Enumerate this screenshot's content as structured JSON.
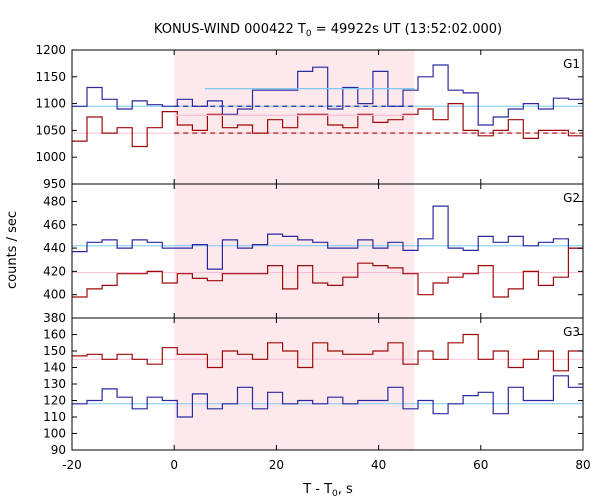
{
  "chart_data": {
    "type": "line",
    "title": "KONUS-WIND 000422 T",
    "title_sub": "0",
    "title_rest": " = 49922s UT (13:52:02.000)",
    "xlabel": "T - T",
    "xlabel_sub": "0",
    "xlabel_rest": ", s",
    "ylabel": "counts / sec",
    "xlim": [
      -20,
      80
    ],
    "x_ticks": [
      -20,
      0,
      20,
      40,
      60,
      80
    ],
    "shaded_interval": [
      0,
      47
    ],
    "colors": {
      "blue": "#2a2aa0",
      "red": "#9e0a0a",
      "cyan": "#7fc8f0",
      "pink": "#f8c0d8",
      "shade": "#fde8ec"
    },
    "bin_width": 2.944,
    "x_start": -20,
    "panels": [
      {
        "label": "G1",
        "ylim": [
          950,
          1200
        ],
        "y_ticks": [
          950,
          1000,
          1050,
          1100,
          1150,
          1200
        ],
        "series": [
          {
            "color": "blue",
            "values": [
              1095,
              1130,
              1108,
              1090,
              1105,
              1098,
              1095,
              1108,
              1095,
              1105,
              1080,
              1090,
              1125,
              1125,
              1125,
              1160,
              1168,
              1090,
              1130,
              1100,
              1160,
              1095,
              1125,
              1150,
              1172,
              1125,
              1120,
              1060,
              1075,
              1090,
              1100,
              1090,
              1110,
              1108,
              1080,
              1115,
              1075,
              1115,
              1095,
              1085,
              1060,
              1115,
              1090,
              1080,
              1055,
              1130,
              1120,
              1075,
              1060,
              1060,
              1085,
              1100,
              1128,
              1070,
              1120
            ]
          },
          {
            "color": "red",
            "values": [
              1030,
              1075,
              1045,
              1055,
              1020,
              1055,
              1085,
              1060,
              1050,
              1080,
              1055,
              1060,
              1045,
              1070,
              1055,
              1080,
              1080,
              1060,
              1055,
              1080,
              1065,
              1070,
              1080,
              1090,
              1070,
              1100,
              1050,
              1040,
              1050,
              1070,
              1035,
              1050,
              1050,
              1040,
              1020,
              1055,
              1030,
              1060,
              1040,
              1035,
              1025,
              1050,
              1035,
              1060,
              1035,
              1050,
              1020,
              1050,
              1000,
              1030,
              1050,
              1055,
              1040,
              1015,
              1060
            ]
          }
        ],
        "fits": [
          {
            "color": "cyan",
            "y": 1095
          },
          {
            "color": "pink",
            "y": 1045
          }
        ],
        "interval_levels": [
          {
            "color": "cyan",
            "y": 1128,
            "x": [
              6,
              47
            ]
          },
          {
            "color": "blue",
            "y": 1095,
            "dashed": true,
            "x": [
              0,
              47
            ]
          },
          {
            "color": "pink",
            "y": 1078,
            "x": [
              0,
              47
            ]
          },
          {
            "color": "red",
            "y": 1045,
            "dashed": true,
            "x": [
              0,
              80
            ]
          }
        ]
      },
      {
        "label": "G2",
        "ylim": [
          380,
          495
        ],
        "y_ticks": [
          380,
          400,
          420,
          440,
          460,
          480
        ],
        "series": [
          {
            "color": "blue",
            "values": [
              437,
              445,
              447,
              440,
              447,
              445,
              440,
              440,
              443,
              422,
              447,
              440,
              443,
              452,
              450,
              447,
              445,
              440,
              440,
              447,
              440,
              445,
              438,
              448,
              476,
              440,
              438,
              450,
              445,
              450,
              442,
              445,
              448,
              440,
              452,
              445,
              452,
              450,
              450,
              448,
              435,
              462,
              440,
              425,
              445,
              440,
              448,
              440,
              437,
              440,
              448,
              447,
              440,
              450,
              430
            ]
          },
          {
            "color": "red",
            "values": [
              398,
              405,
              408,
              418,
              418,
              420,
              410,
              418,
              414,
              412,
              418,
              418,
              418,
              425,
              405,
              425,
              410,
              408,
              415,
              427,
              425,
              423,
              418,
              400,
              410,
              415,
              418,
              425,
              398,
              405,
              420,
              408,
              415,
              440,
              418,
              422,
              415,
              422,
              412,
              420,
              410,
              425,
              418,
              422,
              420,
              418,
              410,
              400,
              395,
              405,
              412,
              418,
              410,
              400,
              420
            ]
          }
        ],
        "fits": [
          {
            "color": "cyan",
            "y": 442
          },
          {
            "color": "pink",
            "y": 419
          }
        ],
        "interval_levels": []
      },
      {
        "label": "G3",
        "ylim": [
          90,
          170
        ],
        "y_ticks": [
          90,
          100,
          110,
          120,
          130,
          140,
          150,
          160
        ],
        "series": [
          {
            "color": "blue",
            "values": [
              118,
              120,
              127,
              122,
              115,
              122,
              120,
              110,
              124,
              115,
              118,
              128,
              115,
              125,
              118,
              120,
              118,
              122,
              118,
              120,
              120,
              128,
              115,
              120,
              112,
              118,
              123,
              125,
              112,
              128,
              120,
              120,
              135,
              128,
              122,
              118,
              128,
              118,
              115,
              118,
              118,
              120,
              125,
              118,
              115,
              124,
              103,
              115,
              122,
              102,
              118,
              120,
              118,
              122,
              118
            ]
          },
          {
            "color": "red",
            "values": [
              147,
              148,
              145,
              148,
              145,
              142,
              152,
              148,
              148,
              140,
              150,
              148,
              145,
              155,
              150,
              140,
              155,
              150,
              148,
              148,
              150,
              155,
              142,
              150,
              145,
              155,
              160,
              145,
              150,
              140,
              145,
              150,
              138,
              150,
              148,
              140,
              160,
              150,
              147,
              148,
              145,
              152,
              150,
              145,
              155,
              150,
              145,
              150,
              135,
              150,
              140,
              160,
              165,
              158,
              160
            ]
          }
        ],
        "fits": [
          {
            "color": "cyan",
            "y": 118
          },
          {
            "color": "pink",
            "y": 145
          }
        ],
        "interval_levels": []
      }
    ]
  }
}
